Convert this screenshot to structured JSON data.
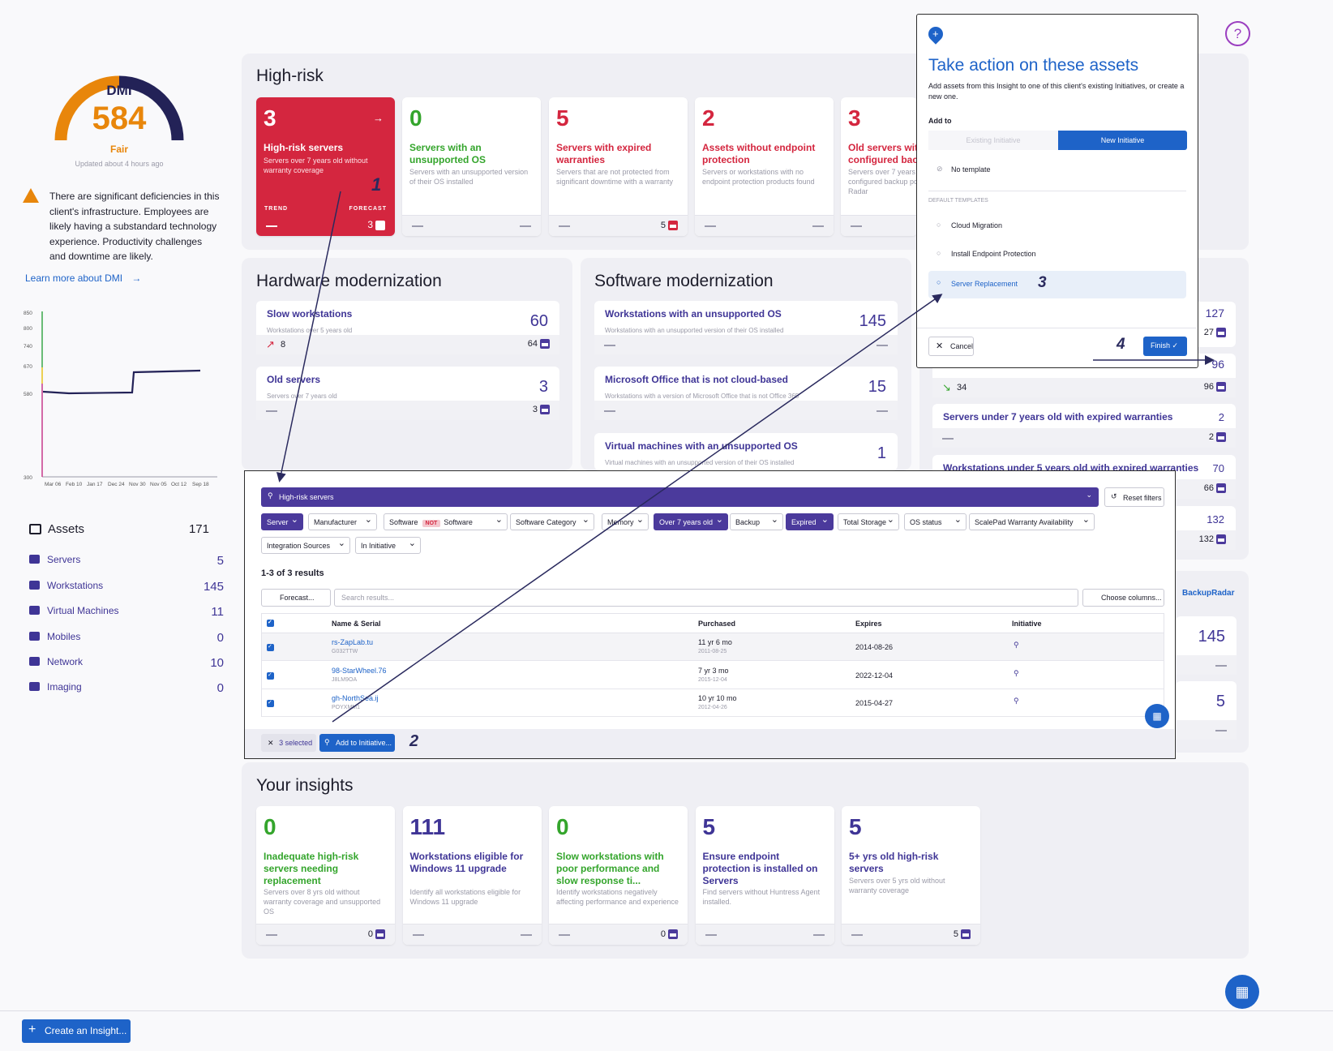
{
  "dmi": {
    "label": "DMI",
    "score": "584",
    "rating": "Fair",
    "updated": "Updated about 4 hours ago",
    "warning": "There are significant deficiencies in this client's infrastructure. Employees are likely having a substandard technology experience. Productivity challenges and downtime are likely.",
    "learn_more": "Learn more about DMI",
    "chart": {
      "yticks": [
        "850",
        "800",
        "740",
        "670",
        "580",
        "300"
      ],
      "xticks": [
        "Mar 06",
        "Feb 10",
        "Jan 17",
        "Dec 24",
        "Nov 30",
        "Nov 05",
        "Oct 12",
        "Sep 18"
      ]
    }
  },
  "assets": {
    "title": "Assets",
    "total": "171",
    "items": [
      {
        "label": "Servers",
        "count": "5"
      },
      {
        "label": "Workstations",
        "count": "145"
      },
      {
        "label": "Virtual Machines",
        "count": "11"
      },
      {
        "label": "Mobiles",
        "count": "0"
      },
      {
        "label": "Network",
        "count": "10"
      },
      {
        "label": "Imaging",
        "count": "0"
      }
    ]
  },
  "high_risk": {
    "title": "High-risk",
    "cards": [
      {
        "num": "3",
        "title": "High-risk servers",
        "desc": "Servers over 7 years old without warranty coverage",
        "trend": "TREND",
        "forecast": "FORECAST",
        "forecast_val": "3",
        "step": "1"
      },
      {
        "num": "0",
        "title": "Servers with an unsupported OS",
        "desc": "Servers with an unsupported version of their OS installed"
      },
      {
        "num": "5",
        "title": "Servers with expired warranties",
        "desc": "Servers that are not protected from significant downtime with a warranty",
        "forecast_val": "5"
      },
      {
        "num": "2",
        "title": "Assets without endpoint protection",
        "desc": "Servers or workstations with no endpoint protection products found"
      },
      {
        "num": "3",
        "title": "Old servers with configured back",
        "desc": "Servers over 7 years configured backup pol Radar"
      }
    ]
  },
  "hardware": {
    "title": "Hardware modernization",
    "items": [
      {
        "title": "Slow workstations",
        "desc": "Workstations over 5 years old",
        "num": "60",
        "trend": "8",
        "forecast": "64"
      },
      {
        "title": "Old servers",
        "desc": "Servers over 7 years old",
        "num": "3",
        "forecast": "3"
      }
    ]
  },
  "software": {
    "title": "Software modernization",
    "items": [
      {
        "title": "Workstations with an unsupported OS",
        "desc": "Workstations with an unsupported version of their OS installed",
        "num": "145"
      },
      {
        "title": "Microsoft Office that is not cloud-based",
        "desc": "Workstations with a version of Microsoft Office that is not Office 365",
        "num": "15"
      },
      {
        "title": "Virtual machines with an unsupported OS",
        "desc": "Virtual machines with an unsupported version of their OS installed",
        "num": "1"
      }
    ]
  },
  "right_col": {
    "items": [
      {
        "num": "127",
        "forecast": "27"
      },
      {
        "num": "96",
        "trend": "34",
        "forecast": "96"
      },
      {
        "title": "Servers under 7 years old with expired warranties",
        "num": "2",
        "forecast": "2"
      },
      {
        "title": "Workstations under 5 years old with expired warranties",
        "num": "70",
        "forecast": "66"
      },
      {
        "num": "132",
        "forecast": "132"
      }
    ],
    "backup_logo": "BackupRadar",
    "backup_nums": [
      "145",
      "5"
    ]
  },
  "modal": {
    "title": "Take action on these assets",
    "desc": "Add assets from this Insight to one of this client's existing Initiatives, or create a new one.",
    "add_to": "Add to",
    "tab_existing": "Existing Initiative",
    "tab_new": "New Initiative",
    "no_template": "No template",
    "default_templates": "DEFAULT TEMPLATES",
    "templates": [
      "Cloud Migration",
      "Install Endpoint Protection",
      "Server Replacement"
    ],
    "cancel": "Cancel",
    "finish": "Finish",
    "step3": "3",
    "step4": "4"
  },
  "explorer": {
    "title": "High-risk servers",
    "reset": "Reset filters",
    "filters": [
      "Server",
      "Manufacturer",
      "Software",
      "NOT",
      "Software",
      "Software Category",
      "Memory",
      "Over 7 years old",
      "Backup",
      "Expired",
      "Total Storage",
      "OS status",
      "ScalePad Warranty Availability",
      "Integration Sources",
      "In Initiative"
    ],
    "results": "1-3 of 3 results",
    "forecast": "Forecast...",
    "search_placeholder": "Search results...",
    "choose_columns": "Choose columns...",
    "columns": [
      "Name & Serial",
      "Purchased",
      "Expires",
      "Initiative"
    ],
    "rows": [
      {
        "name": "rs-ZapLab.tu",
        "serial": "G032TTW",
        "purchased": "11 yr 6 mo",
        "pdate": "2011-08-25",
        "expires": "2014-08-26"
      },
      {
        "name": "98-StarWheel.76",
        "serial": "J8LM9OA",
        "purchased": "7 yr 3 mo",
        "pdate": "2015-12-04",
        "expires": "2022-12-04"
      },
      {
        "name": "gh-NorthSea.ij",
        "serial": "POYXMM1",
        "purchased": "10 yr 10 mo",
        "pdate": "2012-04-26",
        "expires": "2015-04-27"
      }
    ],
    "selected": "3 selected",
    "add_btn": "Add to Initiative...",
    "step2": "2"
  },
  "insights": {
    "title": "Your insights",
    "cards": [
      {
        "num": "0",
        "title": "Inadequate high-risk servers needing replacement",
        "desc": "Servers over 8 yrs old without warranty coverage and unsupported OS",
        "forecast": "0"
      },
      {
        "num": "111",
        "title": "Workstations eligible for Windows 11 upgrade",
        "desc": "Identify all workstations eligible for Windows 11 upgrade"
      },
      {
        "num": "0",
        "title": "Slow workstations with poor performance and slow response ti...",
        "desc": "Identify workstations negatively affecting performance and experience",
        "forecast": "0"
      },
      {
        "num": "5",
        "title": "Ensure endpoint protection is installed on Servers",
        "desc": "Find servers without Huntress Agent installed."
      },
      {
        "num": "5",
        "title": "5+ yrs old high-risk servers",
        "desc": "Servers over 5 yrs old without warranty coverage",
        "forecast": "5"
      }
    ]
  },
  "create_btn": "Create an Insight...",
  "colors": {
    "accent": "#3f3596",
    "danger": "#d4263f",
    "success": "#34a52c",
    "primary": "#1e63c8",
    "gauge_orange": "#e8860b",
    "gauge_navy": "#232257"
  }
}
